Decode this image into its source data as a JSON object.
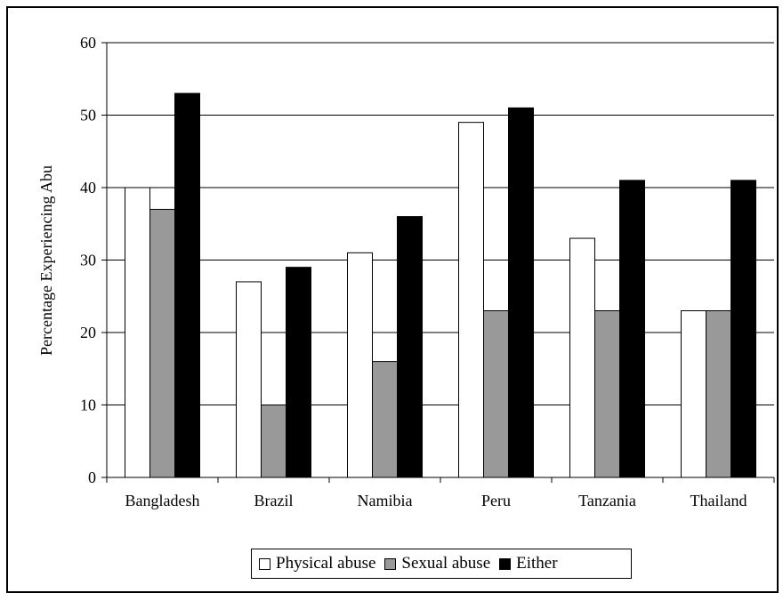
{
  "chart_data": {
    "type": "bar",
    "categories": [
      "Bangladesh",
      "Brazil",
      "Namibia",
      "Peru",
      "Tanzania",
      "Thailand"
    ],
    "series": [
      {
        "name": "Physical abuse",
        "values": [
          40,
          27,
          31,
          49,
          33,
          23
        ],
        "color": "#ffffff"
      },
      {
        "name": "Sexual abuse",
        "values": [
          37,
          10,
          16,
          23,
          23,
          23
        ],
        "color": "#999999"
      },
      {
        "name": "Either",
        "values": [
          53,
          29,
          36,
          51,
          41,
          41
        ],
        "color": "#000000"
      }
    ],
    "title": "",
    "xlabel": "",
    "ylabel": "Percentage Experiencing Abu",
    "ylim": [
      0,
      60
    ],
    "yticks": [
      0,
      10,
      20,
      30,
      40,
      50,
      60
    ],
    "grid": true,
    "legend_position": "bottom"
  }
}
